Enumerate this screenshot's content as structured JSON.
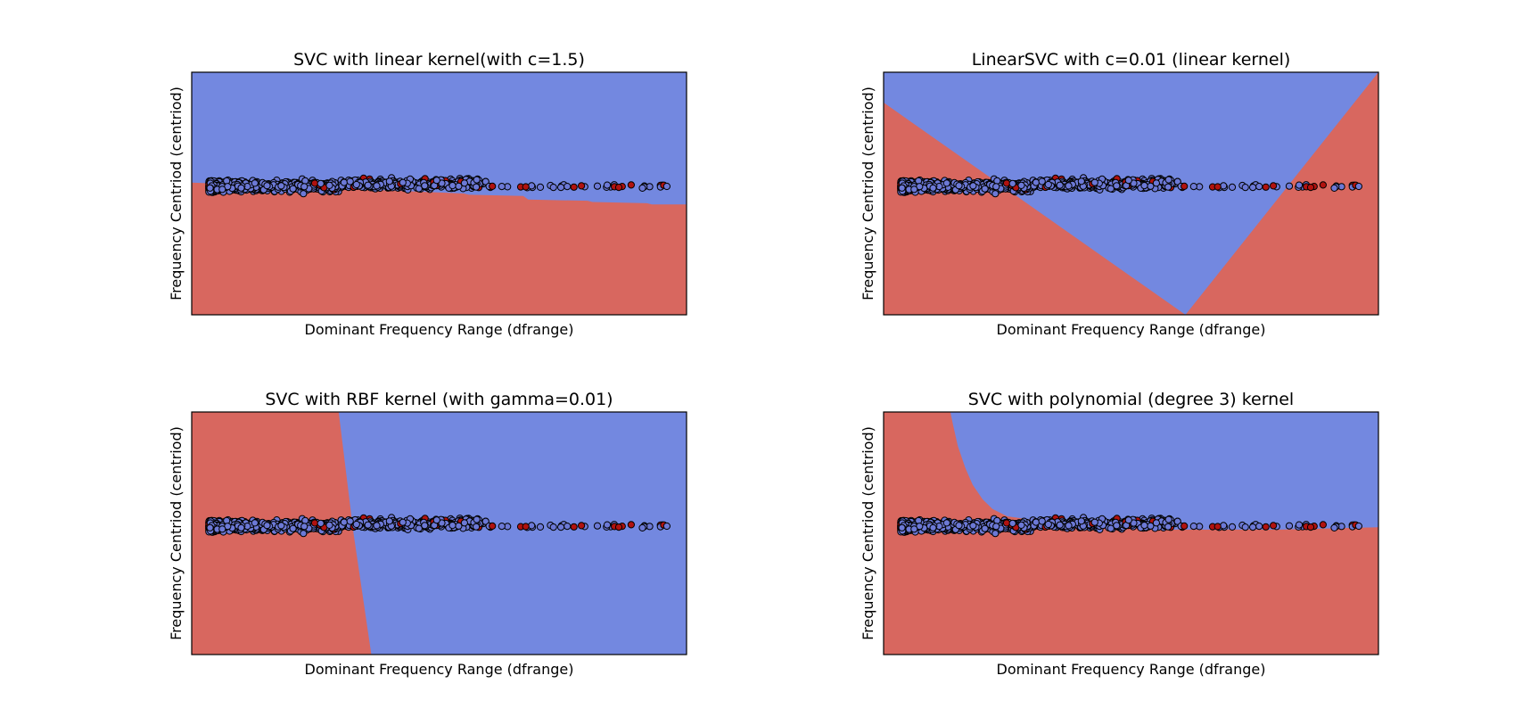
{
  "figure": {
    "colors": {
      "class_a": "#d8675f",
      "class_b": "#7388e0",
      "point_a": "#b1120f",
      "point_b": "#6c79d6",
      "point_edge": "#000000",
      "background": "#ffffff"
    }
  },
  "chart_data": [
    {
      "type": "scatter",
      "title": "SVC with linear kernel(with c=1.5)",
      "xlabel": "Dominant Frequency Range (dfrange)",
      "ylabel": "Frequency Centriod (centriod)",
      "xticks": "none",
      "yticks": "none",
      "grid": false,
      "decision_regions": {
        "upper_region_class": "b",
        "boundary": [
          [
            0.0,
            0.545
          ],
          [
            0.55,
            0.5
          ],
          [
            0.56,
            0.495
          ],
          [
            0.67,
            0.49
          ],
          [
            0.68,
            0.475
          ],
          [
            0.8,
            0.47
          ],
          [
            0.81,
            0.465
          ],
          [
            0.92,
            0.46
          ],
          [
            0.93,
            0.455
          ],
          [
            1.0,
            0.455
          ]
        ]
      }
    },
    {
      "type": "scatter",
      "title": "LinearSVC with c=0.01 (linear kernel)",
      "xlabel": "Dominant Frequency Range (dfrange)",
      "ylabel": "Frequency Centriod (centriod)",
      "xticks": "none",
      "yticks": "none",
      "grid": false,
      "decision_regions": {
        "upper_region_class": "b",
        "boundary": [
          [
            0.0,
            0.875
          ],
          [
            0.61,
            0.0
          ]
        ]
      }
    },
    {
      "type": "scatter",
      "title": "SVC with RBF kernel (with gamma=0.01)",
      "xlabel": "Dominant Frequency Range (dfrange)",
      "ylabel": "Frequency Centriod (centriod)",
      "xticks": "none",
      "yticks": "none",
      "grid": false,
      "decision_regions": {
        "upper_region_class": "b",
        "boundary_type": "near-vertical",
        "left_region_class": "a",
        "boundary": [
          [
            0.297,
            1.0
          ],
          [
            0.327,
            0.5
          ],
          [
            0.363,
            0.0
          ]
        ]
      }
    },
    {
      "type": "scatter",
      "title": "SVC with polynomial (degree 3) kernel",
      "xlabel": "Dominant Frequency Range (dfrange)",
      "ylabel": "Frequency Centriod (centriod)",
      "xticks": "none",
      "yticks": "none",
      "grid": false,
      "decision_regions": {
        "upper_region_class": "b",
        "boundary": [
          [
            0.135,
            1.0
          ],
          [
            0.14,
            0.95
          ],
          [
            0.15,
            0.86
          ],
          [
            0.165,
            0.77
          ],
          [
            0.18,
            0.7
          ],
          [
            0.2,
            0.64
          ],
          [
            0.22,
            0.6
          ],
          [
            0.25,
            0.57
          ],
          [
            0.3,
            0.555
          ],
          [
            0.4,
            0.545
          ],
          [
            0.55,
            0.515
          ],
          [
            0.8,
            0.515
          ],
          [
            1.0,
            0.525
          ]
        ]
      }
    }
  ]
}
